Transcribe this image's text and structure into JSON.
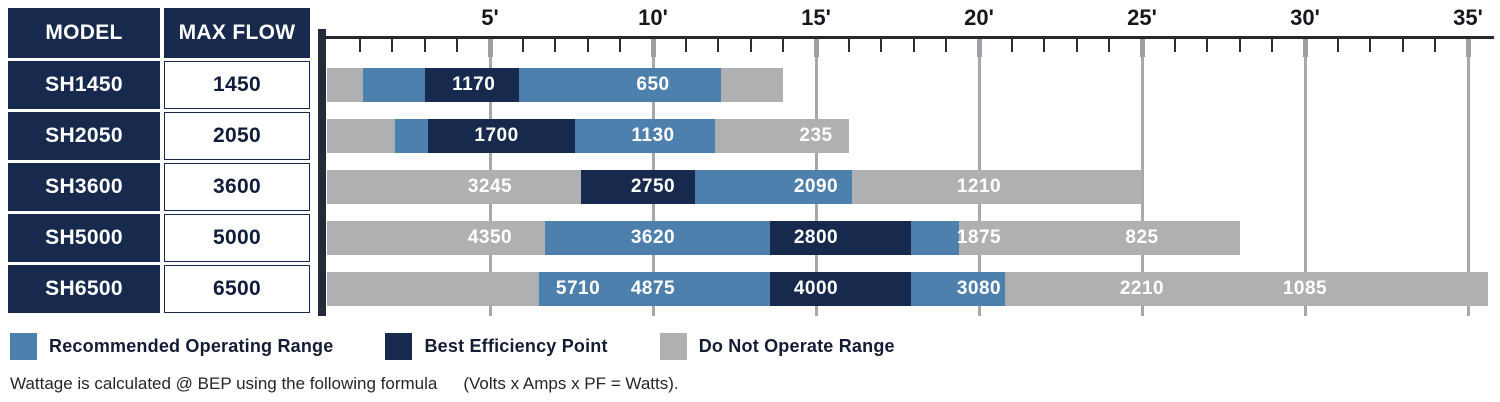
{
  "table": {
    "headers": [
      {
        "label": "MODEL"
      },
      {
        "label": "MAX FLOW"
      }
    ],
    "rows": [
      {
        "model": "SH1450",
        "max_flow": "1450"
      },
      {
        "model": "SH2050",
        "max_flow": "2050"
      },
      {
        "model": "SH3600",
        "max_flow": "3600"
      },
      {
        "model": "SH5000",
        "max_flow": "5000"
      },
      {
        "model": "SH6500",
        "max_flow": "6500"
      }
    ]
  },
  "chart_data": {
    "type": "bar",
    "orientation": "horizontal",
    "x_axis": {
      "unit": "ft",
      "major_ticks": [
        {
          "ft": 5,
          "label": "5'"
        },
        {
          "ft": 10,
          "label": "10'"
        },
        {
          "ft": 15,
          "label": "15'"
        },
        {
          "ft": 20,
          "label": "20'"
        },
        {
          "ft": 25,
          "label": "25'"
        },
        {
          "ft": 30,
          "label": "30'"
        },
        {
          "ft": 35,
          "label": "35'"
        }
      ],
      "minor_tick_every_ft": 1,
      "range_ft": [
        0,
        35.8
      ]
    },
    "segment_colors": {
      "recommended": "#4e80ad",
      "bep": "#172a4d",
      "do_not_operate": "#aeb0b2"
    },
    "rows": [
      {
        "model": "SH1450",
        "segments": [
          {
            "kind": "do_not_operate",
            "from_ft": 0,
            "to_ft": 1.1
          },
          {
            "kind": "recommended",
            "from_ft": 1.1,
            "to_ft": 3.0
          },
          {
            "kind": "bep",
            "from_ft": 3.0,
            "to_ft": 5.9
          },
          {
            "kind": "recommended",
            "from_ft": 5.9,
            "to_ft": 12.1
          },
          {
            "kind": "do_not_operate",
            "from_ft": 12.1,
            "to_ft": 14.0
          }
        ],
        "flow_labels": [
          {
            "text": "1170",
            "at_ft": 4.5
          },
          {
            "text": "650",
            "at_ft": 10
          }
        ]
      },
      {
        "model": "SH2050",
        "segments": [
          {
            "kind": "do_not_operate",
            "from_ft": 0,
            "to_ft": 2.1
          },
          {
            "kind": "recommended",
            "from_ft": 2.1,
            "to_ft": 3.1
          },
          {
            "kind": "bep",
            "from_ft": 3.1,
            "to_ft": 7.6
          },
          {
            "kind": "recommended",
            "from_ft": 7.6,
            "to_ft": 11.9
          },
          {
            "kind": "do_not_operate",
            "from_ft": 11.9,
            "to_ft": 16.0
          }
        ],
        "flow_labels": [
          {
            "text": "1700",
            "at_ft": 5.2
          },
          {
            "text": "1130",
            "at_ft": 10
          },
          {
            "text": "235",
            "at_ft": 15
          }
        ]
      },
      {
        "model": "SH3600",
        "segments": [
          {
            "kind": "do_not_operate",
            "from_ft": 0,
            "to_ft": 7.8
          },
          {
            "kind": "bep",
            "from_ft": 7.8,
            "to_ft": 11.3
          },
          {
            "kind": "recommended",
            "from_ft": 11.3,
            "to_ft": 16.1
          },
          {
            "kind": "do_not_operate",
            "from_ft": 16.1,
            "to_ft": 25.0
          }
        ],
        "flow_labels": [
          {
            "text": "3245",
            "at_ft": 5
          },
          {
            "text": "2750",
            "at_ft": 10
          },
          {
            "text": "2090",
            "at_ft": 15
          },
          {
            "text": "1210",
            "at_ft": 20
          }
        ]
      },
      {
        "model": "SH5000",
        "segments": [
          {
            "kind": "do_not_operate",
            "from_ft": 0,
            "to_ft": 6.7
          },
          {
            "kind": "recommended",
            "from_ft": 6.7,
            "to_ft": 13.6
          },
          {
            "kind": "bep",
            "from_ft": 13.6,
            "to_ft": 17.9
          },
          {
            "kind": "recommended",
            "from_ft": 17.9,
            "to_ft": 19.4
          },
          {
            "kind": "do_not_operate",
            "from_ft": 19.4,
            "to_ft": 28.0
          }
        ],
        "flow_labels": [
          {
            "text": "4350",
            "at_ft": 5
          },
          {
            "text": "3620",
            "at_ft": 10
          },
          {
            "text": "2800",
            "at_ft": 15
          },
          {
            "text": "1875",
            "at_ft": 20
          },
          {
            "text": "825",
            "at_ft": 25
          }
        ]
      },
      {
        "model": "SH6500",
        "segments": [
          {
            "kind": "do_not_operate",
            "from_ft": 0,
            "to_ft": 6.5
          },
          {
            "kind": "recommended",
            "from_ft": 6.5,
            "to_ft": 13.6
          },
          {
            "kind": "bep",
            "from_ft": 13.6,
            "to_ft": 17.9
          },
          {
            "kind": "recommended",
            "from_ft": 17.9,
            "to_ft": 20.8
          },
          {
            "kind": "do_not_operate",
            "from_ft": 20.8,
            "to_ft": 35.6
          }
        ],
        "flow_labels": [
          {
            "text": "5710",
            "at_ft": 7.7
          },
          {
            "text": "4875",
            "at_ft": 10
          },
          {
            "text": "4000",
            "at_ft": 15
          },
          {
            "text": "3080",
            "at_ft": 20
          },
          {
            "text": "2210",
            "at_ft": 25
          },
          {
            "text": "1085",
            "at_ft": 30
          }
        ]
      }
    ]
  },
  "legend": {
    "items": [
      {
        "label": "Recommended Operating Range",
        "color": "#4e80ad"
      },
      {
        "label": "Best Efficiency Point",
        "color": "#172a4d"
      },
      {
        "label": "Do Not Operate Range",
        "color": "#aeb0b2"
      }
    ]
  },
  "footnote": {
    "text1": "Wattage is calculated @ BEP using the following formula",
    "text2": "(Volts x Amps x PF = Watts)."
  }
}
